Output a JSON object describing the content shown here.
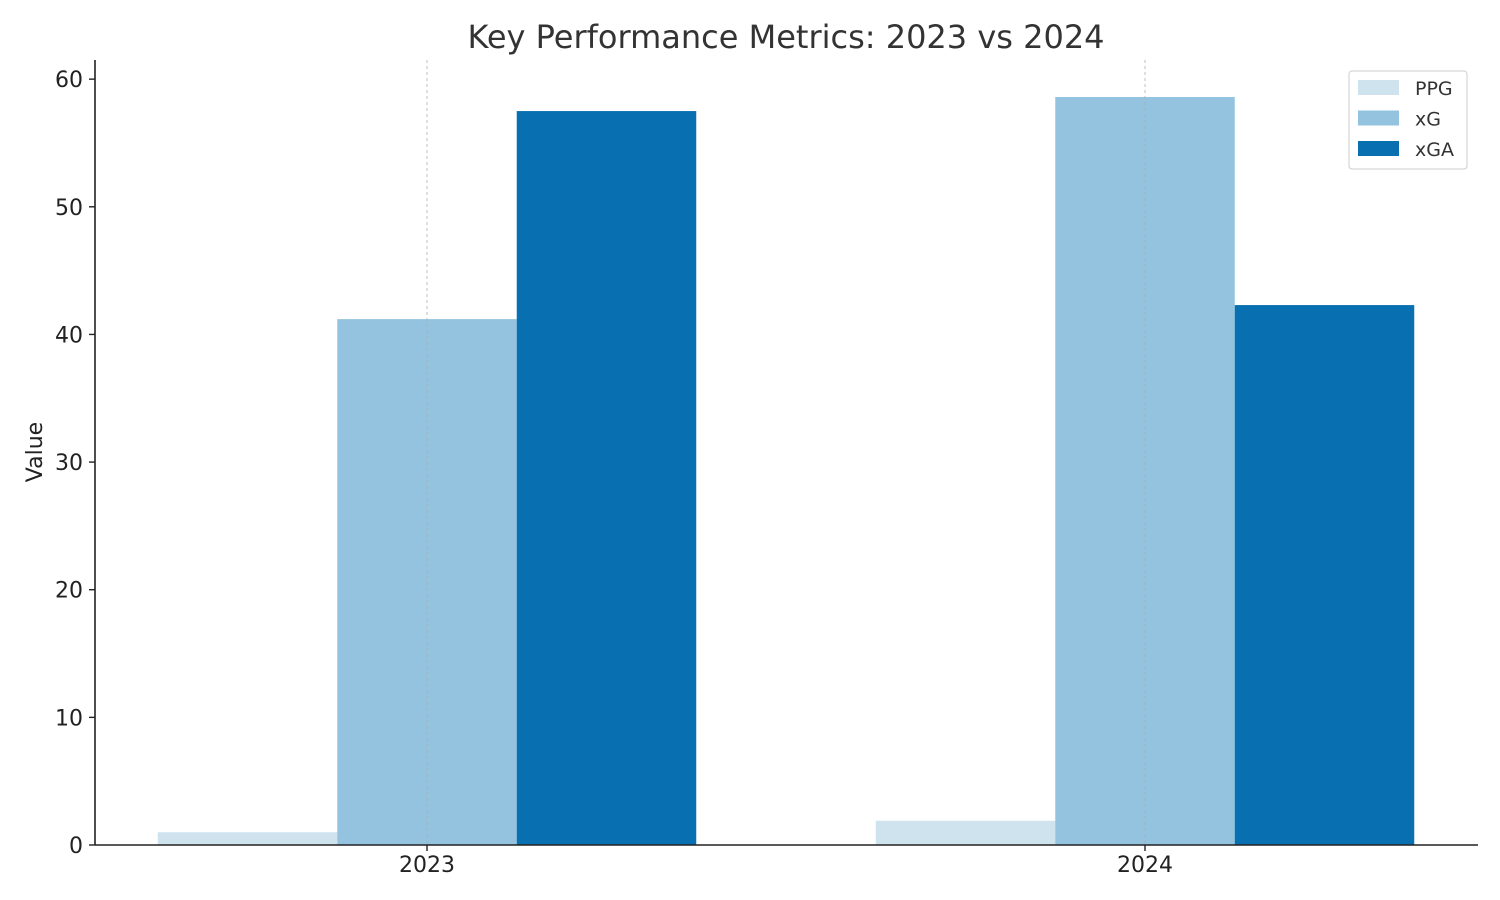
{
  "chart_data": {
    "type": "bar",
    "title": "Key Performance Metrics: 2023 vs 2024",
    "xlabel": "",
    "ylabel": "Value",
    "categories": [
      "2023",
      "2024"
    ],
    "series": [
      {
        "name": "PPG",
        "values": [
          1.0,
          1.9
        ],
        "color": "#cfe3ef"
      },
      {
        "name": "xG",
        "values": [
          41.2,
          58.6
        ],
        "color": "#93c3df"
      },
      {
        "name": "xGA",
        "values": [
          57.5,
          42.3
        ],
        "color": "#0870b0"
      }
    ],
    "ylim": [
      0,
      61.5
    ],
    "yticks": [
      0,
      10,
      20,
      30,
      40,
      50,
      60
    ],
    "grid": {
      "x": true,
      "y": false
    },
    "legend": "top-right"
  }
}
